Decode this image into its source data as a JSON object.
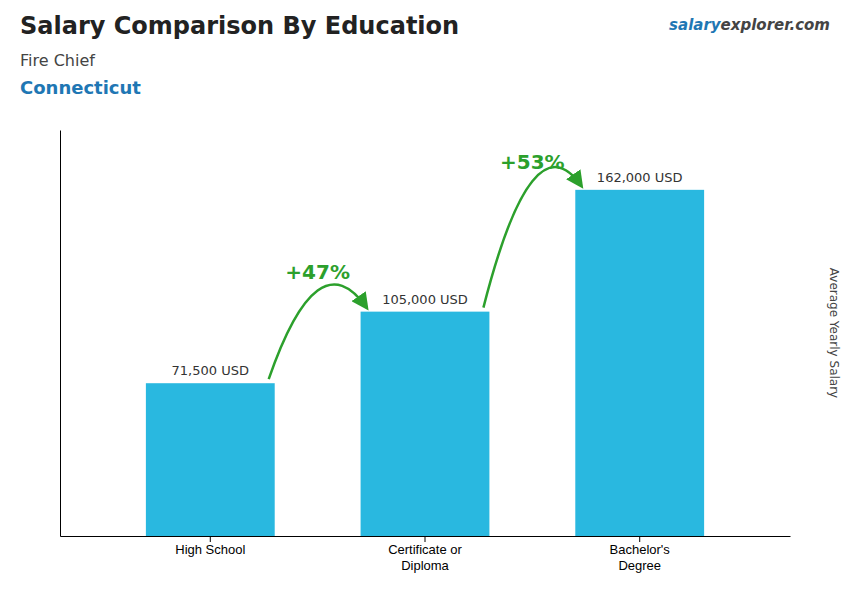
{
  "chart_data": {
    "type": "bar",
    "title": "Salary Comparison By Education",
    "subtitle": [
      "Fire Chief",
      "Connecticut"
    ],
    "watermark": [
      "salary",
      "explorer",
      ".com"
    ],
    "ylabel": "Average Yearly Salary",
    "categories": [
      "High School",
      "Certificate or\nDiploma",
      "Bachelor's\nDegree"
    ],
    "values": [
      71500,
      105000,
      162000
    ],
    "value_labels": [
      "71,500 USD",
      "105,000 USD",
      "162,000 USD"
    ],
    "data_labels": true,
    "annotations": [
      "+47%",
      "+53%"
    ],
    "color": "#29b8e0",
    "ylim": [
      0,
      190000
    ],
    "tick_labels": "x"
  }
}
